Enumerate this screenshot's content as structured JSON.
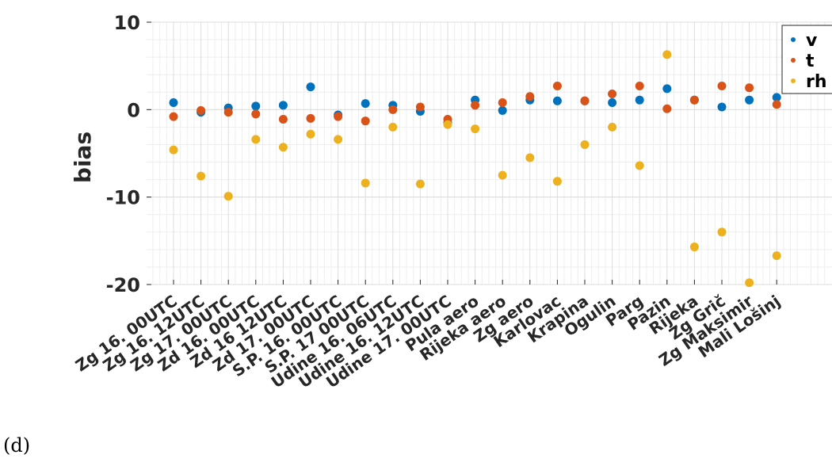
{
  "panel_label": "(d)",
  "chart_data": {
    "type": "scatter",
    "ylabel": "bias",
    "xlabel": "",
    "ylim": [
      -20,
      10
    ],
    "yticks": [
      -20,
      -10,
      0,
      10
    ],
    "grid": true,
    "minor_grid": true,
    "legend_position": "top-right",
    "categories": [
      "Zg 16. 00UTC",
      "Zg 16. 12UTC",
      "Zg 17. 00UTC",
      "Zd 16. 00UTC",
      "Zd 16 12UTC",
      "Zd 17. 00UTC",
      "S.P. 16. 00UTC",
      "S.P. 17 00UTC",
      "Udine 16. 06UTC",
      "Udine 16. 12UTC",
      "Udine 17. 00UTC",
      "Pula aero",
      "Rijeka aero",
      "Zg aero",
      "Karlovac",
      "Krapina",
      "Ogulin",
      "Parg",
      "Pazin",
      "Rijeka",
      "Zg Grič",
      "Zg Maksimir",
      "Mali Lošinj"
    ],
    "series": [
      {
        "name": "v",
        "color": "#0072BD",
        "values": [
          0.8,
          -0.3,
          0.2,
          0.4,
          0.5,
          2.6,
          -0.6,
          0.7,
          0.5,
          -0.2,
          -1.5,
          1.1,
          -0.1,
          1.1,
          1.0,
          1.0,
          0.8,
          1.1,
          2.4,
          1.1,
          0.3,
          1.1,
          1.4
        ]
      },
      {
        "name": "t",
        "color": "#D95319",
        "values": [
          -0.8,
          -0.1,
          -0.3,
          -0.5,
          -1.1,
          -1.0,
          -0.8,
          -1.3,
          0.0,
          0.3,
          -1.1,
          0.5,
          0.8,
          1.5,
          2.7,
          1.0,
          1.8,
          2.7,
          0.1,
          1.1,
          2.7,
          2.5,
          0.6
        ]
      },
      {
        "name": "rh",
        "color": "#EDB120",
        "values": [
          -4.6,
          -7.6,
          -9.9,
          -3.4,
          -4.3,
          -2.8,
          -3.4,
          -8.4,
          -2.0,
          -8.5,
          -1.7,
          -2.2,
          -7.5,
          -5.5,
          -8.2,
          -4.0,
          -2.0,
          -6.4,
          6.3,
          -15.7,
          -14.0,
          -19.8,
          -16.7
        ]
      }
    ]
  }
}
